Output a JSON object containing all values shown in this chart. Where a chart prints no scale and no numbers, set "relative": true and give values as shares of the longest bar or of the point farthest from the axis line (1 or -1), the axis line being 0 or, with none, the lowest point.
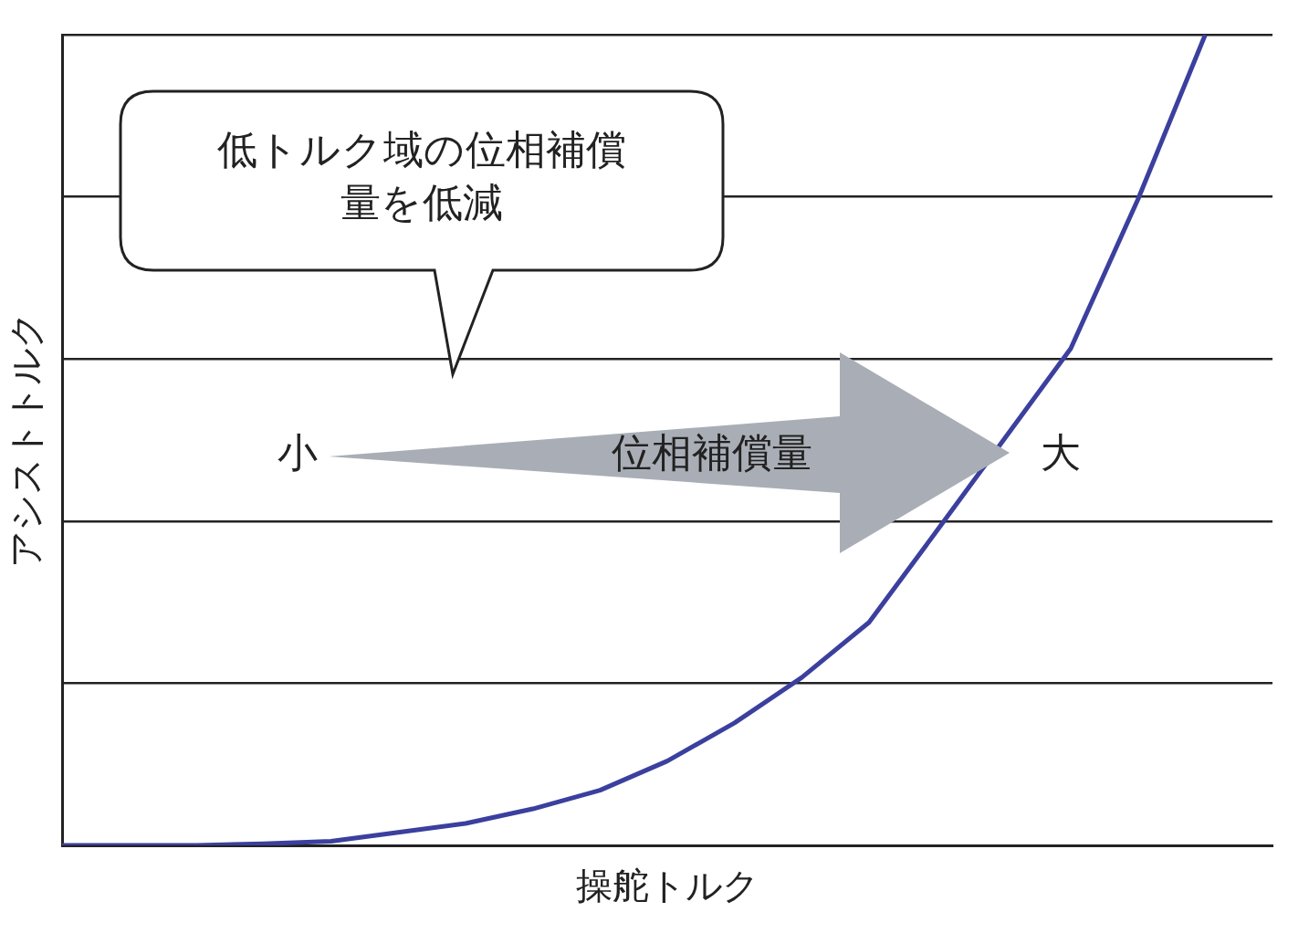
{
  "chart_data": {
    "type": "line",
    "xlabel": "操舵トルク",
    "ylabel": "アシストトルク",
    "relative": true,
    "grid": "y",
    "color": "#3b3f9e",
    "categories": [
      null,
      null,
      null,
      null,
      null,
      null,
      null,
      null,
      null,
      null,
      null,
      null,
      null,
      null,
      null,
      null,
      null,
      null,
      null
    ],
    "values": [
      0,
      0,
      0,
      0.002,
      0.005,
      0.016,
      0.027,
      0.045,
      0.068,
      0.104,
      0.151,
      0.207,
      0.275,
      0.387,
      0.5,
      0.613,
      0.797,
      1,
      null
    ],
    "annotations": [
      "低トルク域の位相補償量を低減",
      "小",
      "位相補償量",
      "大"
    ]
  }
}
